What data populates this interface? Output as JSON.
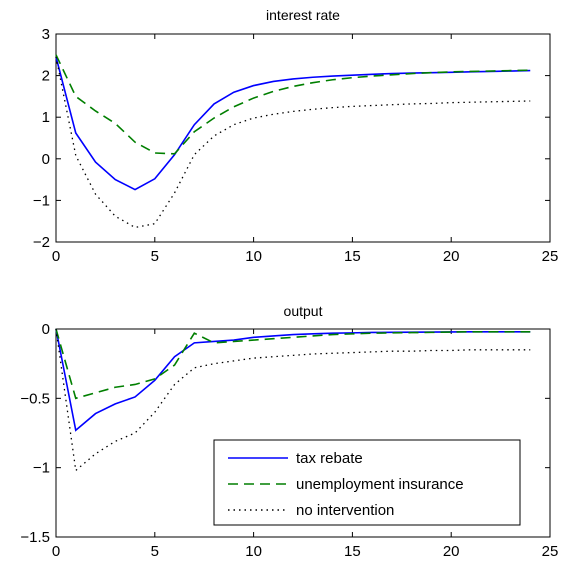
{
  "chart_data": [
    {
      "type": "line",
      "title": "interest rate",
      "xlabel": "",
      "ylabel": "",
      "xlim": [
        0,
        25
      ],
      "ylim": [
        -2,
        3
      ],
      "xticks": [
        0,
        5,
        10,
        15,
        20,
        25
      ],
      "yticks": [
        -2,
        -1,
        0,
        1,
        2,
        3
      ],
      "xtick_labels": [
        "0",
        "5",
        "10",
        "15",
        "20",
        "25"
      ],
      "ytick_labels": [
        "−2",
        "−1",
        "0",
        "1",
        "2",
        "3"
      ],
      "grid": false,
      "x": [
        0,
        1,
        2,
        3,
        4,
        5,
        6,
        7,
        8,
        9,
        10,
        11,
        12,
        13,
        14,
        15,
        16,
        17,
        18,
        19,
        20,
        21,
        22,
        23,
        24
      ],
      "series": [
        {
          "name": "tax rebate",
          "color": "#0000ff",
          "style": "solid",
          "values": [
            2.45,
            0.62,
            -0.08,
            -0.5,
            -0.74,
            -0.48,
            0.1,
            0.82,
            1.32,
            1.6,
            1.76,
            1.86,
            1.92,
            1.96,
            1.99,
            2.01,
            2.03,
            2.05,
            2.06,
            2.07,
            2.08,
            2.09,
            2.1,
            2.11,
            2.12
          ]
        },
        {
          "name": "unemployment insurance",
          "color": "#007f00",
          "style": "dashed",
          "values": [
            2.5,
            1.5,
            1.15,
            0.85,
            0.4,
            0.14,
            0.12,
            0.65,
            0.98,
            1.25,
            1.46,
            1.62,
            1.74,
            1.83,
            1.9,
            1.95,
            1.99,
            2.02,
            2.05,
            2.07,
            2.09,
            2.1,
            2.11,
            2.12,
            2.13
          ]
        },
        {
          "name": "no intervention",
          "color": "#000000",
          "style": "dotted",
          "values": [
            2.45,
            0.08,
            -0.85,
            -1.38,
            -1.65,
            -1.56,
            -0.82,
            0.1,
            0.55,
            0.82,
            0.98,
            1.07,
            1.14,
            1.19,
            1.23,
            1.26,
            1.28,
            1.3,
            1.32,
            1.33,
            1.35,
            1.36,
            1.37,
            1.38,
            1.39
          ]
        }
      ]
    },
    {
      "type": "line",
      "title": "output",
      "xlabel": "",
      "ylabel": "",
      "xlim": [
        0,
        25
      ],
      "ylim": [
        -1.5,
        0
      ],
      "xticks": [
        0,
        5,
        10,
        15,
        20,
        25
      ],
      "yticks": [
        -1.5,
        -1,
        -0.5,
        0
      ],
      "xtick_labels": [
        "0",
        "5",
        "10",
        "15",
        "20",
        "25"
      ],
      "ytick_labels": [
        "−1.5",
        "−1",
        "−0.5",
        "0"
      ],
      "grid": false,
      "legend_position": "bottom-right",
      "x": [
        0,
        1,
        2,
        3,
        4,
        5,
        6,
        7,
        8,
        9,
        10,
        11,
        12,
        13,
        14,
        15,
        16,
        17,
        18,
        19,
        20,
        21,
        22,
        23,
        24
      ],
      "series": [
        {
          "name": "tax rebate",
          "color": "#0000ff",
          "style": "solid",
          "values": [
            0,
            -0.73,
            -0.61,
            -0.54,
            -0.49,
            -0.37,
            -0.2,
            -0.1,
            -0.09,
            -0.08,
            -0.06,
            -0.05,
            -0.04,
            -0.035,
            -0.03,
            -0.028,
            -0.025,
            -0.024,
            -0.023,
            -0.022,
            -0.021,
            -0.02,
            -0.02,
            -0.02,
            -0.02
          ]
        },
        {
          "name": "unemployment insurance",
          "color": "#007f00",
          "style": "dashed",
          "values": [
            0,
            -0.5,
            -0.46,
            -0.42,
            -0.4,
            -0.36,
            -0.26,
            -0.03,
            -0.1,
            -0.09,
            -0.08,
            -0.07,
            -0.06,
            -0.05,
            -0.04,
            -0.035,
            -0.03,
            -0.028,
            -0.026,
            -0.024,
            -0.022,
            -0.02,
            -0.02,
            -0.02,
            -0.02
          ]
        },
        {
          "name": "no intervention",
          "color": "#000000",
          "style": "dotted",
          "values": [
            0,
            -1.02,
            -0.9,
            -0.81,
            -0.75,
            -0.6,
            -0.4,
            -0.28,
            -0.25,
            -0.23,
            -0.21,
            -0.2,
            -0.19,
            -0.18,
            -0.175,
            -0.17,
            -0.165,
            -0.16,
            -0.16,
            -0.155,
            -0.155,
            -0.15,
            -0.15,
            -0.15,
            -0.15
          ]
        }
      ]
    }
  ]
}
